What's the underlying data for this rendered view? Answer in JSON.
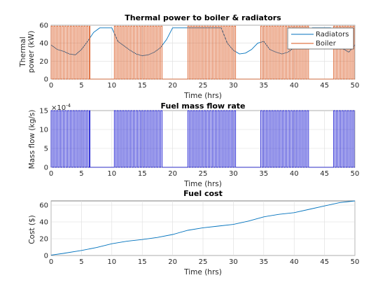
{
  "chart_data": [
    {
      "type": "line",
      "title": "Thermal power to boiler & radiators",
      "xlabel": "Time (hrs)",
      "ylabel": [
        "Thermal",
        "power (kW)"
      ],
      "xlim": [
        0,
        50
      ],
      "ylim": [
        0,
        60
      ],
      "xticks": [
        0,
        5,
        10,
        15,
        20,
        25,
        30,
        35,
        40,
        45,
        50
      ],
      "yticks": [
        0,
        20,
        40,
        60
      ],
      "grid": true,
      "legend": "top-right",
      "series": [
        {
          "name": "Radiators",
          "color": "#0072BD",
          "x": [
            0,
            1,
            2,
            3,
            4,
            5,
            6,
            7,
            8,
            10,
            11,
            12,
            13,
            14,
            15,
            16,
            17,
            18,
            19,
            20,
            21,
            22,
            23,
            24,
            25,
            26,
            27,
            28,
            29,
            30,
            31,
            32,
            33,
            34,
            35,
            36,
            37,
            38,
            39,
            40,
            41,
            42,
            43,
            44,
            45,
            46,
            47,
            48,
            49,
            50
          ],
          "y": [
            38,
            33,
            31,
            28,
            27,
            33,
            42,
            52,
            57,
            57,
            42,
            37,
            32,
            28,
            26,
            27,
            30,
            35,
            44,
            57,
            57,
            57,
            57,
            57,
            57,
            57,
            57,
            57,
            40,
            32,
            28,
            29,
            33,
            40,
            42,
            33,
            30,
            28,
            30,
            35,
            42,
            52,
            57,
            57,
            57,
            57,
            45,
            34,
            30,
            38
          ]
        },
        {
          "name": "Boiler",
          "color": "#D95319",
          "pulse_level": 59,
          "on_windows": [
            [
              0,
              6.4
            ],
            [
              10.4,
              18.4
            ],
            [
              22.5,
              30.4
            ],
            [
              34.5,
              42.4
            ],
            [
              46.5,
              50
            ]
          ]
        }
      ]
    },
    {
      "type": "line",
      "title": "Fuel mass flow rate",
      "xlabel": "Time (hrs)",
      "ylabel": "Mass flow (kg/s)",
      "xlim": [
        0,
        50
      ],
      "ylim": [
        0,
        0.0015
      ],
      "xticks": [
        0,
        5,
        10,
        15,
        20,
        25,
        30,
        35,
        40,
        45,
        50
      ],
      "yticks": [
        0,
        5,
        10,
        15
      ],
      "exponent": "×10",
      "exponent_power": "-4",
      "grid": true,
      "series": [
        {
          "color": "#0000CC",
          "pulse_level": 0.0015,
          "on_windows": [
            [
              0,
              6.4
            ],
            [
              10.4,
              18.4
            ],
            [
              22.5,
              30.4
            ],
            [
              34.5,
              42.4
            ],
            [
              46.5,
              50
            ]
          ]
        }
      ]
    },
    {
      "type": "line",
      "title": "Fuel cost",
      "xlabel": "Time (hrs)",
      "ylabel": "Cost ($)",
      "xlim": [
        0,
        50
      ],
      "ylim": [
        0,
        65
      ],
      "xticks": [
        0,
        5,
        10,
        15,
        20,
        25,
        30,
        35,
        40,
        45,
        50
      ],
      "yticks": [
        0,
        20,
        40,
        60
      ],
      "grid": true,
      "series": [
        {
          "color": "#0072BD",
          "x": [
            0,
            2,
            5,
            7.5,
            10,
            12.5,
            15,
            17.5,
            20,
            22.5,
            25,
            27.5,
            30,
            32.5,
            35,
            37.5,
            40,
            42.5,
            45,
            47.5,
            50
          ],
          "y": [
            0.5,
            2.5,
            6,
            9.5,
            14,
            17,
            19,
            21.5,
            25,
            30,
            33,
            35,
            37,
            41,
            46,
            49,
            51,
            55,
            59,
            63,
            65
          ]
        }
      ]
    }
  ]
}
